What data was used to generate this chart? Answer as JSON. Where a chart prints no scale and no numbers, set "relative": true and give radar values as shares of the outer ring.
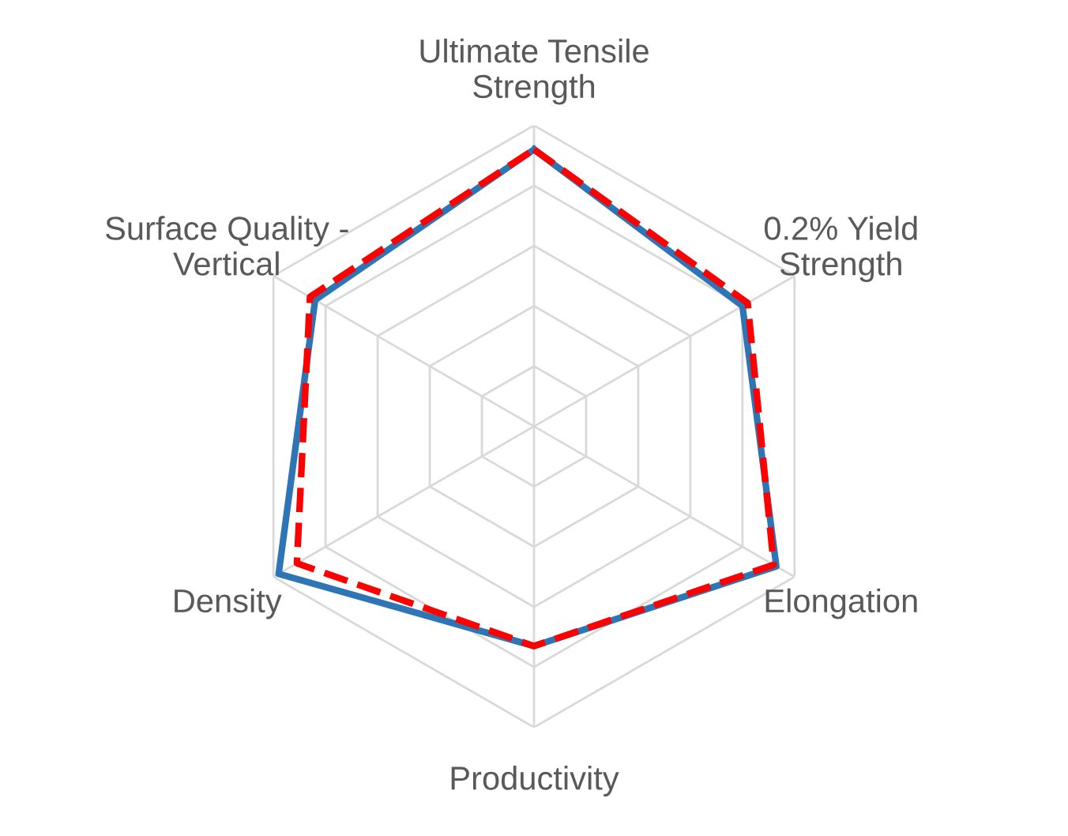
{
  "chart_data": {
    "type": "radar",
    "relative": true,
    "grid": true,
    "legend": false,
    "categories": [
      "Ultimate Tensile\nStrength",
      "0.2% Yield\nStrength",
      "Elongation",
      "Productivity",
      "Density",
      "Surface Quality -\nVertical"
    ],
    "series": [
      {
        "color": "#2e75b6",
        "line_style": "solid",
        "values": [
          0.92,
          0.8,
          0.93,
          0.73,
          0.98,
          0.84
        ]
      },
      {
        "color": "#ff0000",
        "line_style": "dashed",
        "values": [
          0.92,
          0.82,
          0.92,
          0.73,
          0.91,
          0.86
        ]
      }
    ]
  }
}
